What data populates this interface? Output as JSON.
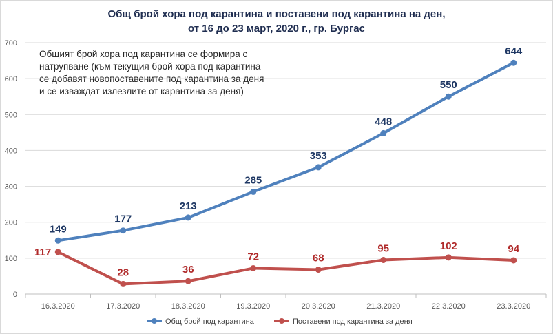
{
  "chart_data": {
    "type": "line",
    "title_line1": "Общ брой хора под карантина  и поставени под карантина на ден,",
    "title_line2": "от 16 до 23 март, 2020 г., гр. Бургас",
    "annotation": "Общият брой хора под карантина се формира с натрупване (към текущия брой хора под карантина се добавят новопоставените под карантина за деня и се изваждат излезлите от карантина за деня)",
    "categories": [
      "16.3.2020",
      "17.3.2020",
      "18.3.2020",
      "19.3.2020",
      "20.3.2020",
      "21.3.2020",
      "22.3.2020",
      "23.3.2020"
    ],
    "yticks": [
      0,
      100,
      200,
      300,
      400,
      500,
      600,
      700
    ],
    "ylim": [
      0,
      700
    ],
    "grid": true,
    "legend_position": "bottom",
    "series": [
      {
        "name": "Общ брой под карантина",
        "color": "#4f81bd",
        "label_color": "#1f3864",
        "values": [
          149,
          177,
          213,
          285,
          353,
          448,
          550,
          644
        ]
      },
      {
        "name": "Поставени под карантина за деня",
        "color": "#c0504d",
        "label_color": "#b02a2a",
        "values": [
          117,
          28,
          36,
          72,
          68,
          95,
          102,
          94
        ]
      }
    ]
  }
}
